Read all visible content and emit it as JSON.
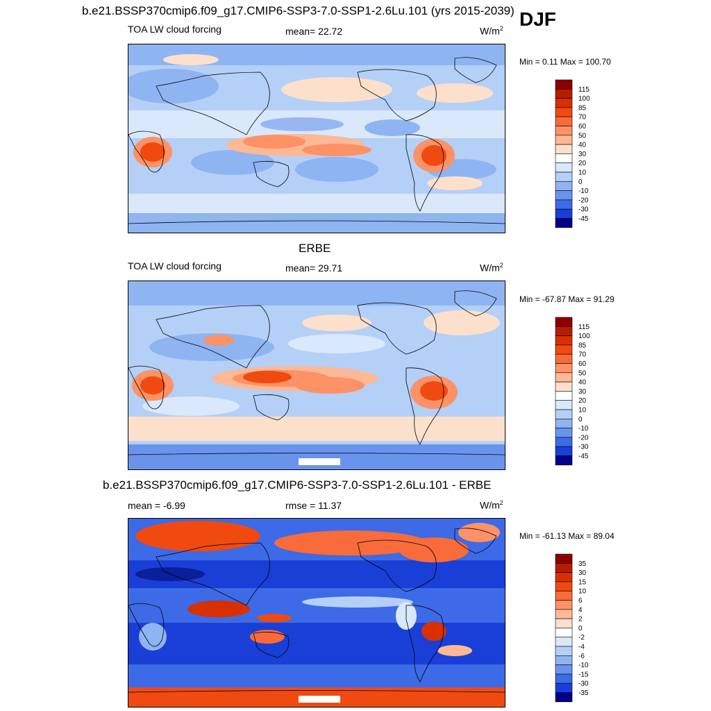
{
  "season": "DJF",
  "panels": [
    {
      "id": "model",
      "section_title": "b.e21.BSSP370cmip6.f09_g17.CMIP6-SSP3-7.0-SSP1-2.6Lu.101 (yrs 2015-2039)",
      "left_label": "TOA LW cloud forcing",
      "center_label": "mean=  22.72",
      "units": "W/m",
      "units_sup": "2",
      "minmax": "Min =   0.11 Max = 100.70",
      "levels": [
        "115",
        "100",
        "85",
        "70",
        "60",
        "50",
        "40",
        "30",
        "20",
        "10",
        "0",
        "-10",
        "-20",
        "-30",
        "-45"
      ],
      "colors": [
        "#8b0000",
        "#b81c00",
        "#d83000",
        "#f04a10",
        "#f96b3a",
        "#fc9266",
        "#fdb896",
        "#fde0cc",
        "#ffffff",
        "#d9e8fb",
        "#b4d0f7",
        "#8fb4f2",
        "#6a94ec",
        "#3d6ae6",
        "#1a3fd6",
        "#00008b"
      ]
    },
    {
      "id": "obs",
      "section_title": "ERBE",
      "left_label": "TOA LW cloud forcing",
      "center_label": "mean=  29.71",
      "units": "W/m",
      "units_sup": "2",
      "minmax": "Min = -67.87 Max =  91.29",
      "levels": [
        "115",
        "100",
        "85",
        "70",
        "60",
        "50",
        "40",
        "30",
        "20",
        "10",
        "0",
        "-10",
        "-20",
        "-30",
        "-45"
      ],
      "colors": [
        "#8b0000",
        "#b81c00",
        "#d83000",
        "#f04a10",
        "#f96b3a",
        "#fc9266",
        "#fdb896",
        "#fde0cc",
        "#ffffff",
        "#d9e8fb",
        "#b4d0f7",
        "#8fb4f2",
        "#6a94ec",
        "#3d6ae6",
        "#1a3fd6",
        "#00008b"
      ]
    },
    {
      "id": "diff",
      "section_title": "b.e21.BSSP370cmip6.f09_g17.CMIP6-SSP3-7.0-SSP1-2.6Lu.101 - ERBE",
      "left_label": "mean =  -6.99",
      "center_label": "rmse =  11.37",
      "units": "W/m",
      "units_sup": "2",
      "minmax": "Min = -61.13 Max =  89.04",
      "levels": [
        "35",
        "30",
        "15",
        "10",
        "6",
        "4",
        "2",
        "0",
        "-2",
        "-4",
        "-6",
        "-10",
        "-15",
        "-30",
        "-35"
      ],
      "colors": [
        "#8b0000",
        "#b81c00",
        "#d83000",
        "#f04a10",
        "#f96b3a",
        "#fc9266",
        "#fdb896",
        "#fde0cc",
        "#ffffff",
        "#d9e8fb",
        "#b4d0f7",
        "#8fb4f2",
        "#6a94ec",
        "#3d6ae6",
        "#1a3fd6",
        "#00008b"
      ]
    }
  ],
  "chart_data": [
    {
      "type": "heatmap",
      "title": "b.e21.BSSP370cmip6.f09_g17.CMIP6-SSP3-7.0-SSP1-2.6Lu.101 (yrs 2015-2039)",
      "variable": "TOA LW cloud forcing",
      "units": "W/m2",
      "mean": 22.72,
      "min": 0.11,
      "max": 100.7,
      "contour_levels": [
        -45,
        -30,
        -20,
        -10,
        0,
        10,
        20,
        30,
        40,
        50,
        60,
        70,
        85,
        100,
        115
      ]
    },
    {
      "type": "heatmap",
      "title": "ERBE",
      "variable": "TOA LW cloud forcing",
      "units": "W/m2",
      "mean": 29.71,
      "min": -67.87,
      "max": 91.29,
      "contour_levels": [
        -45,
        -30,
        -20,
        -10,
        0,
        10,
        20,
        30,
        40,
        50,
        60,
        70,
        85,
        100,
        115
      ]
    },
    {
      "type": "heatmap",
      "title": "b.e21.BSSP370cmip6.f09_g17.CMIP6-SSP3-7.0-SSP1-2.6Lu.101 - ERBE",
      "units": "W/m2",
      "mean": -6.99,
      "rmse": 11.37,
      "min": -61.13,
      "max": 89.04,
      "contour_levels": [
        -35,
        -30,
        -15,
        -10,
        -6,
        -4,
        -2,
        0,
        2,
        4,
        6,
        10,
        15,
        30,
        35
      ]
    }
  ]
}
